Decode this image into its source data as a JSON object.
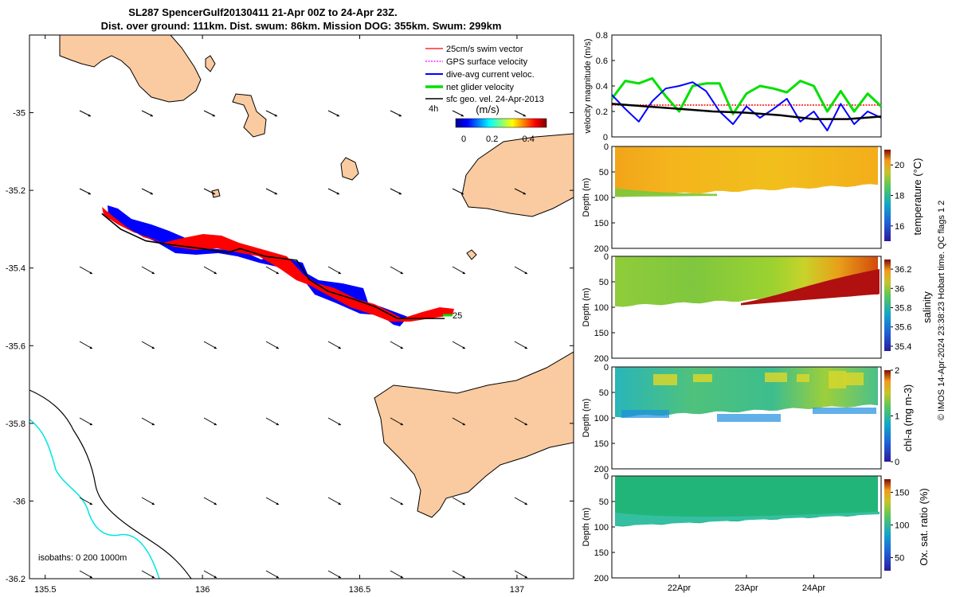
{
  "title": {
    "line1": "SL287 SpencerGulf20130411 21-Apr 00Z to 24-Apr 23Z.",
    "line2": "Dist. over ground: 111km. Dist. swum: 86km. Mission DOG: 355km. Swum: 299km"
  },
  "colors": {
    "land": "#FACBA0",
    "swim": "#FF0000",
    "gps": "#FF00FF",
    "current": "#0000FF",
    "net": "#00E000",
    "sfc": "#000000",
    "isobath200": "#00E5E5"
  },
  "chart_data": [
    {
      "type": "scatter",
      "name": "map",
      "xlim": [
        135.45,
        137.18
      ],
      "ylim": [
        -36.2,
        -34.8
      ],
      "xticks": [
        135.5,
        136,
        136.5,
        137
      ],
      "xtick_labels": [
        "135.5",
        "136",
        "136.5",
        "137"
      ],
      "yticks": [
        -35,
        -35.2,
        -35.4,
        -35.6,
        -35.8,
        -36,
        -36.2
      ],
      "ytick_labels": [
        "-35",
        "-35.2",
        "-35.4",
        "-35.6",
        "-35.8",
        "-36",
        "-36.2"
      ],
      "legend": {
        "position": "top-right",
        "entries": [
          "25cm/s swim vector",
          "GPS surface velocity",
          "dive-avg current veloc.",
          "net glider velocity",
          "sfc geo. vel. 24-Apr-2013"
        ]
      },
      "time_marker_label": "4h",
      "colorbar": {
        "label": "(m/s)",
        "ticks": [
          0,
          0.2,
          0.4
        ],
        "tick_labels": [
          "0",
          "0.2",
          "0.4"
        ],
        "range": [
          0,
          0.5
        ]
      },
      "end_label": "25",
      "isobaths_label": "isobaths: 0   200  1000m",
      "glider_track": [
        [
          135.68,
          -35.26
        ],
        [
          135.74,
          -35.3
        ],
        [
          135.82,
          -35.33
        ],
        [
          135.9,
          -35.34
        ],
        [
          136.0,
          -35.35
        ],
        [
          136.08,
          -35.36
        ],
        [
          136.12,
          -35.35
        ],
        [
          136.2,
          -35.37
        ],
        [
          136.3,
          -35.38
        ],
        [
          136.34,
          -35.43
        ],
        [
          136.4,
          -35.46
        ],
        [
          136.48,
          -35.48
        ],
        [
          136.55,
          -35.5
        ],
        [
          136.62,
          -35.53
        ],
        [
          136.7,
          -35.53
        ],
        [
          136.77,
          -35.53
        ]
      ]
    },
    {
      "type": "line",
      "name": "velocity",
      "ylabel": "velocity magnitude (m/s)",
      "ylim": [
        0,
        0.8
      ],
      "yticks": [
        0,
        0.2,
        0.4,
        0.6,
        0.8
      ],
      "ytick_labels": [
        "0",
        "0.2",
        "0.4",
        "0.6",
        "0.8"
      ],
      "xlim": [
        21.0,
        25.0
      ],
      "series": [
        {
          "name": "25cm/s swim vector",
          "x": [
            21.0,
            25.0
          ],
          "values": [
            0.25,
            0.25
          ]
        },
        {
          "name": "net glider velocity",
          "x": [
            21.0,
            21.2,
            21.4,
            21.6,
            21.8,
            22.0,
            22.2,
            22.4,
            22.6,
            22.8,
            23.0,
            23.2,
            23.4,
            23.6,
            23.8,
            24.0,
            24.2,
            24.4,
            24.6,
            24.8,
            25.0
          ],
          "values": [
            0.3,
            0.44,
            0.42,
            0.46,
            0.32,
            0.2,
            0.4,
            0.42,
            0.42,
            0.18,
            0.34,
            0.4,
            0.38,
            0.35,
            0.44,
            0.4,
            0.2,
            0.36,
            0.2,
            0.34,
            0.24
          ]
        },
        {
          "name": "dive-avg current veloc.",
          "x": [
            21.0,
            21.2,
            21.4,
            21.6,
            21.8,
            22.0,
            22.2,
            22.4,
            22.6,
            22.8,
            23.0,
            23.2,
            23.4,
            23.6,
            23.8,
            24.0,
            24.2,
            24.4,
            24.6,
            24.8,
            25.0
          ],
          "values": [
            0.33,
            0.22,
            0.12,
            0.28,
            0.38,
            0.4,
            0.43,
            0.36,
            0.2,
            0.1,
            0.24,
            0.15,
            0.22,
            0.3,
            0.12,
            0.2,
            0.05,
            0.26,
            0.1,
            0.2,
            0.15
          ]
        },
        {
          "name": "sfc geo. vel. 24-Apr-2013",
          "x": [
            21.0,
            21.5,
            22.0,
            22.5,
            23.0,
            23.5,
            24.0,
            24.5,
            25.0
          ],
          "values": [
            0.26,
            0.24,
            0.22,
            0.2,
            0.19,
            0.17,
            0.14,
            0.14,
            0.16
          ]
        }
      ]
    },
    {
      "type": "heatmap",
      "name": "temperature",
      "ylabel": "Depth (m)",
      "ylim": [
        0,
        200
      ],
      "yticks": [
        0,
        50,
        100,
        150,
        200
      ],
      "ytick_labels": [
        "0",
        "50",
        "100",
        "150",
        "200"
      ],
      "cbar_label": "temperature (°C)",
      "cbar_range": [
        15,
        21
      ],
      "cbar_ticks": [
        16,
        18,
        20
      ],
      "cbar_tick_labels": [
        "16",
        "18",
        "20"
      ]
    },
    {
      "type": "heatmap",
      "name": "salinity",
      "ylabel": "Depth (m)",
      "ylim": [
        0,
        200
      ],
      "yticks": [
        0,
        50,
        100,
        150,
        200
      ],
      "ytick_labels": [
        "0",
        "50",
        "100",
        "150",
        "200"
      ],
      "cbar_label": "salinity",
      "cbar_range": [
        35.35,
        36.3
      ],
      "cbar_ticks": [
        35.4,
        35.6,
        35.8,
        36,
        36.2
      ],
      "cbar_tick_labels": [
        "35.4",
        "35.6",
        "35.8",
        "36",
        "36.2"
      ]
    },
    {
      "type": "heatmap",
      "name": "chl-a",
      "ylabel": "Depth (m)",
      "ylim": [
        0,
        200
      ],
      "yticks": [
        0,
        50,
        100,
        150,
        200
      ],
      "ytick_labels": [
        "0",
        "50",
        "100",
        "150",
        "200"
      ],
      "cbar_label": "chl-a (mg m-3)",
      "cbar_range": [
        0,
        2
      ],
      "cbar_ticks": [
        0,
        1,
        2
      ],
      "cbar_tick_labels": [
        "0",
        "1",
        "2"
      ]
    },
    {
      "type": "heatmap",
      "name": "oxygen",
      "ylabel": "Depth (m)",
      "ylim": [
        0,
        200
      ],
      "yticks": [
        0,
        50,
        100,
        150,
        200
      ],
      "ytick_labels": [
        "0",
        "50",
        "100",
        "150",
        "200"
      ],
      "xtick_labels": [
        "22Apr",
        "23Apr",
        "24Apr"
      ],
      "cbar_label": "Ox. sat. ratio (%)",
      "cbar_range": [
        30,
        170
      ],
      "cbar_ticks": [
        50,
        100,
        150
      ],
      "cbar_tick_labels": [
        "50",
        "100",
        "150"
      ]
    }
  ],
  "credit": "© IMOS 14-Apr-2024 23:38:23 Hobart time. QC flags 1  2"
}
